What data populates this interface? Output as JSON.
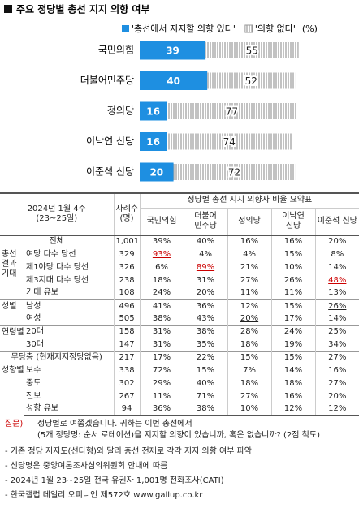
{
  "chart_data": {
    "type": "bar",
    "orientation": "horizontal",
    "stacked": true,
    "title": "주요 정당별 총선 지지 의향 여부",
    "unit": "(%)",
    "categories": [
      "국민의힘",
      "더불어민주당",
      "정의당",
      "이낙연 신당",
      "이준석 신당"
    ],
    "series": [
      {
        "name": "'총선에서 지지할 의향 있다'",
        "color": "#1e8fe1",
        "values": [
          39,
          40,
          16,
          16,
          20
        ]
      },
      {
        "name": "'의향 없다'",
        "color": "#b0b0b0",
        "pattern": "hatch",
        "values": [
          55,
          52,
          77,
          74,
          72
        ]
      }
    ]
  },
  "table": {
    "period": [
      "2024년 1월 4주",
      "(23~25일)"
    ],
    "n_header": [
      "사례수",
      "(명)"
    ],
    "group_header": "정당별 총선 지지 의향자 비율 요약표",
    "columns": [
      "국민의힘",
      "더불어 민주당",
      "정의당",
      "이낙연 신당",
      "이준석 신당"
    ],
    "sections": [
      {
        "rows": [
          {
            "label": "전체",
            "n": "1,001",
            "values": [
              "39%",
              "40%",
              "16%",
              "16%",
              "20%"
            ]
          }
        ]
      },
      {
        "group": "총선 결과 기대",
        "rows": [
          {
            "label": "여당 다수 당선",
            "n": "329",
            "values": [
              "93%",
              "4%",
              "4%",
              "15%",
              "8%"
            ]
          },
          {
            "label": "제1야당 다수 당선",
            "n": "326",
            "values": [
              "6%",
              "89%",
              "21%",
              "10%",
              "14%"
            ]
          },
          {
            "label": "제3지대 다수 당선",
            "n": "238",
            "values": [
              "18%",
              "31%",
              "27%",
              "26%",
              "48%"
            ]
          },
          {
            "label": "기대 유보",
            "n": "108",
            "values": [
              "24%",
              "20%",
              "11%",
              "11%",
              "13%"
            ]
          }
        ]
      },
      {
        "group": "성별",
        "rows": [
          {
            "label": "남성",
            "n": "496",
            "values": [
              "41%",
              "36%",
              "12%",
              "15%",
              "26%"
            ]
          },
          {
            "label": "여성",
            "n": "505",
            "values": [
              "38%",
              "43%",
              "20%",
              "17%",
              "14%"
            ]
          }
        ]
      },
      {
        "group": "연령별",
        "rows": [
          {
            "label": "20대",
            "n": "158",
            "values": [
              "31%",
              "38%",
              "28%",
              "24%",
              "25%"
            ]
          },
          {
            "label": "30대",
            "n": "147",
            "values": [
              "31%",
              "35%",
              "18%",
              "19%",
              "34%"
            ]
          }
        ]
      },
      {
        "rows": [
          {
            "label": "무당층 (현재지지정당없음)",
            "n": "217",
            "values": [
              "17%",
              "22%",
              "15%",
              "15%",
              "27%"
            ]
          }
        ]
      },
      {
        "group": "성향별",
        "rows": [
          {
            "label": "보수",
            "n": "338",
            "values": [
              "72%",
              "15%",
              "7%",
              "14%",
              "16%"
            ]
          },
          {
            "label": "중도",
            "n": "302",
            "values": [
              "29%",
              "40%",
              "18%",
              "18%",
              "27%"
            ]
          },
          {
            "label": "진보",
            "n": "267",
            "values": [
              "11%",
              "71%",
              "27%",
              "16%",
              "20%"
            ]
          },
          {
            "label": "성향 유보",
            "n": "94",
            "values": [
              "36%",
              "38%",
              "10%",
              "12%",
              "12%"
            ]
          }
        ]
      }
    ]
  },
  "question": {
    "label": "질문)",
    "lines": [
      "정당별로 여쭙겠습니다. 귀하는 이번 총선에서",
      "(5개 정당명: 순서 로테이션)을 지지할 의향이 있습니까, 혹은 없습니까? (2점 척도)"
    ]
  },
  "footnotes": [
    "- 기존 정당 지지도(선다형)와 달리 총선 전제로 각각 지지 의향 여부 파악",
    "- 신당명은 중앙여론조사심의위원회 안내에 따름",
    "- 2024년 1월 23~25일 전국 유권자 1,001명 전화조사(CATI)",
    "- 한국갤럽 데일리 오피니언 제572호 www.gallup.co.kr"
  ]
}
